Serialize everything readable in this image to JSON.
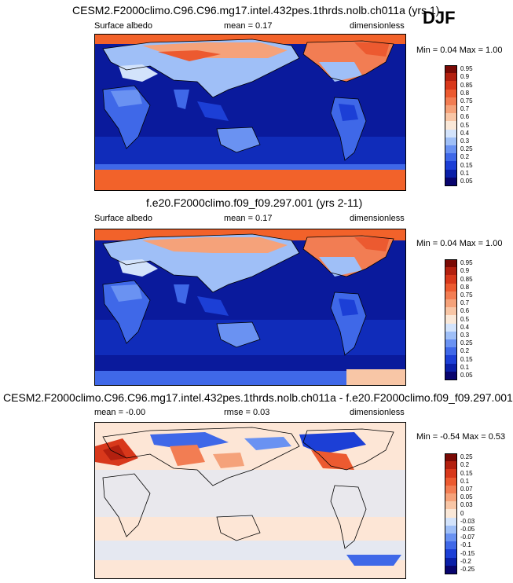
{
  "season": "DJF",
  "panels": [
    {
      "title": "CESM2.F2000climo.C96.C96.mg17.intel.432pes.1thrds.nolb.ch011a (yrs 1)",
      "left_label": "Surface albedo",
      "center_label": "mean =  0.17",
      "right_label": "dimensionless",
      "minmax": "Min =  0.04 Max =  1.00",
      "colorbar": [
        "0.95",
        "0.9",
        "0.85",
        "0.8",
        "0.75",
        "0.7",
        "0.6",
        "0.5",
        "0.4",
        "0.3",
        "0.25",
        "0.2",
        "0.15",
        "0.1",
        "0.05"
      ]
    },
    {
      "title": "f.e20.F2000climo.f09_f09.297.001 (yrs 2-11)",
      "left_label": "Surface albedo",
      "center_label": "mean =  0.17",
      "right_label": "dimensionless",
      "minmax": "Min =  0.04 Max =  1.00",
      "colorbar": [
        "0.95",
        "0.9",
        "0.85",
        "0.8",
        "0.75",
        "0.7",
        "0.6",
        "0.5",
        "0.4",
        "0.3",
        "0.25",
        "0.2",
        "0.15",
        "0.1",
        "0.05"
      ]
    },
    {
      "title": "CESM2.F2000climo.C96.C96.mg17.intel.432pes.1thrds.nolb.ch011a - f.e20.F2000climo.f09_f09.297.001",
      "left_label": "mean =  -0.00",
      "center_label": "rmse =  0.03",
      "right_label": "dimensionless",
      "minmax": "Min =  -0.54 Max =  0.53",
      "colorbar": [
        "0.25",
        "0.2",
        "0.15",
        "0.1",
        "0.07",
        "0.05",
        "0.03",
        "0",
        "-0.03",
        "-0.05",
        "-0.07",
        "-0.1",
        "-0.15",
        "-0.2",
        "-0.25"
      ]
    }
  ],
  "colors": {
    "seq_low_to_high": [
      "#08046e",
      "#0a1fa8",
      "#1c3fd6",
      "#3f68e8",
      "#6a92f2",
      "#9fbff7",
      "#d3e3fb",
      "#fae8d8",
      "#f8c6a6",
      "#f5a27a",
      "#f27d53",
      "#ec5a30",
      "#d8381b",
      "#b3200f",
      "#7a0a05"
    ],
    "div_low_to_high": [
      "#08046e",
      "#0a1fa8",
      "#1c3fd6",
      "#3f68e8",
      "#6a92f2",
      "#9fbff7",
      "#d3e3fb",
      "#fae8d8",
      "#f8c6a6",
      "#f5a27a",
      "#f27d53",
      "#ec5a30",
      "#d8381b",
      "#b3200f",
      "#7a0a05"
    ],
    "ocean_abs": "#0a1a9c",
    "diff_bg": "#fde6d6",
    "diff_bg2": "#dfe8f7"
  }
}
